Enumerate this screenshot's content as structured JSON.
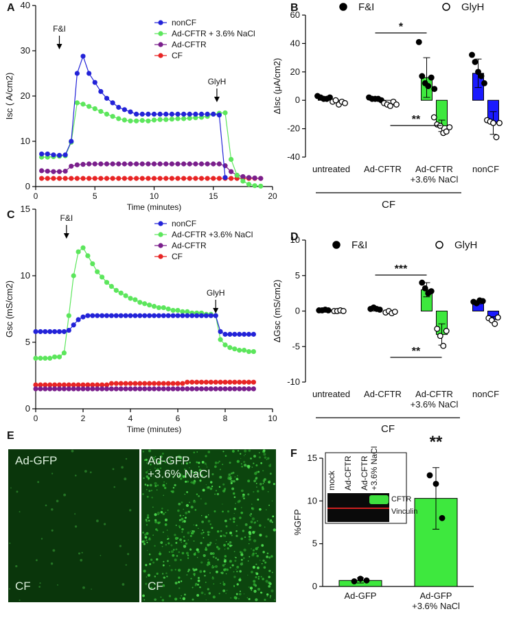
{
  "chart_data": [
    {
      "type": "line",
      "label": "A",
      "x_label": "Time (minutes)",
      "y_label": "Isc (  A/cm2)",
      "x": [
        0.5,
        1,
        1.5,
        2,
        2.5,
        3,
        3.5,
        4,
        4.5,
        5,
        5.5,
        6,
        6.5,
        7,
        7.5,
        8,
        8.5,
        9,
        9.5,
        10,
        10.5,
        11,
        11.5,
        12,
        12.5,
        13,
        13.5,
        14,
        14.5,
        15,
        15.5,
        16,
        16.5,
        17,
        17.5,
        18,
        18.5,
        19
      ],
      "xlim": [
        0,
        20
      ],
      "xticks": [
        0,
        5,
        10,
        15,
        20
      ],
      "ylim": [
        0,
        40
      ],
      "yticks": [
        0,
        10,
        20,
        30,
        40
      ],
      "series": [
        {
          "name": "nonCF",
          "color": "#2323d8",
          "values": [
            7.2,
            7.2,
            7.0,
            6.9,
            7.0,
            10,
            25,
            28.8,
            25,
            23,
            21,
            19.5,
            18.5,
            17.5,
            17,
            16.5,
            16,
            16,
            16,
            16,
            16,
            16,
            16,
            16,
            16,
            16,
            16,
            16,
            16,
            16,
            15.8,
            2,
            null,
            null,
            null,
            null,
            null,
            null
          ]
        },
        {
          "name": "Ad-CFTR + 3.6% NaCl",
          "color": "#5ce65c",
          "values": [
            6.5,
            6.5,
            6.6,
            6.7,
            6.8,
            9.8,
            18.5,
            18.2,
            17.7,
            17.2,
            16.6,
            16.0,
            15.5,
            15.0,
            14.7,
            14.5,
            14.5,
            14.6,
            14.5,
            14.7,
            14.8,
            14.8,
            14.9,
            15,
            15,
            15.1,
            15.2,
            15.3,
            15.5,
            16,
            16.2,
            16.3,
            6,
            2.5,
            1.2,
            0.5,
            0.2,
            0.1
          ]
        },
        {
          "name": "Ad-CFTR",
          "color": "#7a1f8c",
          "values": [
            3.5,
            3.4,
            3.3,
            3.3,
            3.4,
            4.5,
            4.8,
            4.9,
            5,
            5,
            5,
            5,
            5,
            5,
            5,
            5,
            5,
            5,
            5,
            5,
            5,
            5,
            5,
            5,
            5,
            5,
            5,
            5,
            5,
            5,
            5,
            4.6,
            3.3,
            2.5,
            2.2,
            2.0,
            1.9,
            1.8
          ]
        },
        {
          "name": "CF",
          "color": "#e82525",
          "values": [
            1.8,
            1.8,
            1.8,
            1.8,
            1.8,
            1.8,
            1.8,
            1.8,
            1.8,
            1.8,
            1.8,
            1.8,
            1.8,
            1.8,
            1.8,
            1.8,
            1.8,
            1.8,
            1.8,
            1.8,
            1.8,
            1.8,
            1.8,
            1.8,
            1.8,
            1.8,
            1.8,
            1.8,
            1.8,
            1.8,
            1.8,
            1.8,
            1.8,
            1.8,
            1.8,
            1.8,
            1.8,
            1.8
          ]
        }
      ],
      "annotations": [
        {
          "text": "F&I",
          "x": 2
        },
        {
          "text": "GlyH",
          "x": 15.3
        }
      ]
    },
    {
      "type": "bar",
      "label": "B",
      "y_label": "ΔIsc (μA/cm2)",
      "categories": [
        "untreated",
        "Ad-CFTR",
        "Ad-CFTR\n+3.6% NaCl",
        "nonCF"
      ],
      "group_label": "CF",
      "ylim": [
        -40,
        60
      ],
      "yticks": [
        -40,
        -20,
        0,
        20,
        40,
        60
      ],
      "series": [
        {
          "name": "F&I",
          "marker": "filled",
          "colors": [
            "#ffffff",
            "#ffffff",
            "#3ee83e",
            "#1a1aff"
          ],
          "values": [
            1.8,
            1,
            16,
            19
          ],
          "errors": [
            null,
            null,
            14,
            10
          ],
          "points": [
            [
              3,
              2,
              1,
              1,
              2
            ],
            [
              2,
              1,
              1,
              1,
              0
            ],
            [
              41,
              17,
              12,
              10,
              16,
              8
            ],
            [
              32,
              27,
              20,
              17,
              12
            ]
          ]
        },
        {
          "name": "GlyH",
          "marker": "open",
          "colors": [
            "#ffffff",
            "#ffffff",
            "#3ee83e",
            "#1a1aff"
          ],
          "values": [
            -1.5,
            -2.5,
            -18,
            -16
          ],
          "errors": [
            null,
            null,
            4,
            8
          ],
          "points": [
            [
              -1,
              0,
              -3,
              -1,
              -2
            ],
            [
              -2,
              -3,
              -4,
              -1,
              -3
            ],
            [
              -12,
              -17,
              -18,
              -23,
              -22,
              -19
            ],
            [
              -14,
              -15,
              -16,
              -26,
              -16
            ]
          ]
        }
      ],
      "significance": [
        {
          "text": "*"
        },
        {
          "text": "**"
        }
      ]
    },
    {
      "type": "line",
      "label": "C",
      "x_label": "Time (minutes)",
      "y_label": "Gsc (mS/cm2)",
      "x": [
        0,
        0.2,
        0.4,
        0.6,
        0.8,
        1,
        1.2,
        1.4,
        1.6,
        1.8,
        2,
        2.2,
        2.4,
        2.6,
        2.8,
        3,
        3.2,
        3.4,
        3.6,
        3.8,
        4,
        4.2,
        4.4,
        4.6,
        4.8,
        5,
        5.2,
        5.4,
        5.6,
        5.8,
        6,
        6.2,
        6.4,
        6.6,
        6.8,
        7,
        7.2,
        7.4,
        7.6,
        7.8,
        8,
        8.2,
        8.4,
        8.6,
        8.8,
        9,
        9.2
      ],
      "xlim": [
        0,
        10
      ],
      "xticks": [
        0,
        2,
        4,
        6,
        8,
        10
      ],
      "ylim": [
        0,
        15
      ],
      "yticks": [
        0,
        5,
        10,
        15
      ],
      "series": [
        {
          "name": "nonCF",
          "color": "#2323d8",
          "values": [
            5.8,
            5.8,
            5.8,
            5.8,
            5.8,
            5.8,
            5.8,
            5.9,
            6.3,
            6.7,
            6.9,
            7,
            7,
            7,
            7,
            7,
            7,
            7,
            7,
            7,
            7,
            7,
            7,
            7,
            7,
            7,
            7,
            7,
            7,
            7,
            7,
            7,
            7,
            7,
            7,
            7,
            7,
            7,
            7,
            5.8,
            5.6,
            5.6,
            5.6,
            5.6,
            5.6,
            5.6,
            5.6
          ]
        },
        {
          "name": "Ad-CFTR +3.6% NaCl",
          "color": "#5ce65c",
          "values": [
            3.8,
            3.8,
            3.8,
            3.8,
            3.9,
            3.9,
            4.2,
            7,
            10,
            11.8,
            12.1,
            11.5,
            10.9,
            10.3,
            9.9,
            9.5,
            9.2,
            8.9,
            8.7,
            8.5,
            8.3,
            8.2,
            8.0,
            7.9,
            7.8,
            7.7,
            7.6,
            7.6,
            7.5,
            7.4,
            7.4,
            7.3,
            7.3,
            7.2,
            7.2,
            7.2,
            7.1,
            7.1,
            7.0,
            5.2,
            4.8,
            4.6,
            4.5,
            4.4,
            4.4,
            4.3,
            4.3
          ]
        },
        {
          "name": "Ad-CFTR",
          "color": "#7a1f8c",
          "values": [
            1.5,
            1.5,
            1.5,
            1.5,
            1.5,
            1.5,
            1.5,
            1.5,
            1.5,
            1.5,
            1.5,
            1.5,
            1.5,
            1.5,
            1.5,
            1.5,
            1.5,
            1.5,
            1.5,
            1.5,
            1.5,
            1.5,
            1.5,
            1.5,
            1.5,
            1.5,
            1.5,
            1.5,
            1.5,
            1.5,
            1.5,
            1.5,
            1.5,
            1.5,
            1.5,
            1.5,
            1.5,
            1.5,
            1.5,
            1.5,
            1.5,
            1.5,
            1.5,
            1.5,
            1.5,
            1.5,
            1.5
          ]
        },
        {
          "name": "CF",
          "color": "#e82525",
          "values": [
            1.8,
            1.8,
            1.8,
            1.8,
            1.8,
            1.8,
            1.8,
            1.8,
            1.8,
            1.8,
            1.8,
            1.8,
            1.8,
            1.8,
            1.8,
            1.8,
            1.9,
            1.9,
            1.9,
            1.9,
            1.9,
            1.9,
            1.9,
            1.9,
            1.9,
            1.9,
            1.9,
            1.9,
            1.9,
            1.9,
            1.9,
            1.9,
            2,
            2,
            2,
            2,
            2,
            2,
            2,
            2,
            2,
            2,
            2,
            2,
            2,
            2,
            2
          ]
        }
      ],
      "annotations": [
        {
          "text": "F&I",
          "x": 1.3
        },
        {
          "text": "GlyH",
          "x": 7.6
        }
      ]
    },
    {
      "type": "bar",
      "label": "D",
      "y_label": "ΔGsc (mS/cm2)",
      "categories": [
        "untreated",
        "Ad-CFTR",
        "Ad-CFTR\n+3.6% NaCl",
        "nonCF"
      ],
      "group_label": "CF",
      "ylim": [
        -10,
        10
      ],
      "yticks": [
        -10,
        -5,
        0,
        5,
        10
      ],
      "series": [
        {
          "name": "F&I",
          "marker": "filled",
          "colors": [
            "#ffffff",
            "#ffffff",
            "#3ee83e",
            "#1a1aff"
          ],
          "values": [
            0.1,
            0.3,
            3.0,
            1.2
          ],
          "errors": [
            null,
            null,
            1,
            0.2
          ],
          "points": [
            [
              0.1,
              0.1,
              0.2,
              0.1
            ],
            [
              0.3,
              0.5,
              0.3,
              0.2
            ],
            [
              4,
              3.2,
              2.5,
              2.8
            ],
            [
              1.3,
              1.1,
              1.5,
              1.4
            ]
          ]
        },
        {
          "name": "GlyH",
          "marker": "open",
          "colors": [
            "#ffffff",
            "#ffffff",
            "#3ee83e",
            "#1a1aff"
          ],
          "values": [
            0,
            -0.2,
            -3.3,
            -1.2
          ],
          "errors": [
            null,
            null,
            1.5,
            0.4
          ],
          "points": [
            [
              0,
              0,
              0.1,
              0
            ],
            [
              -0.2,
              0,
              -0.3,
              -0.1
            ],
            [
              -2.5,
              -3.5,
              -4.9,
              -2.8
            ],
            [
              -1,
              -1.3,
              -1.8,
              -0.9
            ]
          ]
        }
      ],
      "significance": [
        {
          "text": "***"
        },
        {
          "text": "**"
        }
      ]
    },
    {
      "type": "bar",
      "label": "F",
      "y_label": "%GFP",
      "categories": [
        "Ad-GFP",
        "Ad-GFP\n+3.6% NaCl"
      ],
      "color": "#3ee83e",
      "ylim": [
        0,
        15
      ],
      "yticks": [
        0,
        5,
        10,
        15
      ],
      "values": [
        0.7,
        10.3
      ],
      "errors": [
        0.3,
        3.6
      ],
      "points": [
        [
          0.6,
          0.9,
          0.7
        ],
        [
          13,
          12,
          8
        ]
      ],
      "significance": [
        {
          "text": "**"
        }
      ],
      "inset": {
        "lanes": [
          "mock",
          "Ad-CFTR",
          "Ad-CFTR\n+3.6% NaCl"
        ],
        "bands": [
          "CFTR",
          "Vinculin"
        ]
      }
    }
  ],
  "images": {
    "label": "E",
    "panels": [
      {
        "top": "Ad-GFP",
        "bottom": "CF"
      },
      {
        "top": "Ad-GFP\n+3.6% NaCl",
        "bottom": "CF"
      }
    ]
  }
}
